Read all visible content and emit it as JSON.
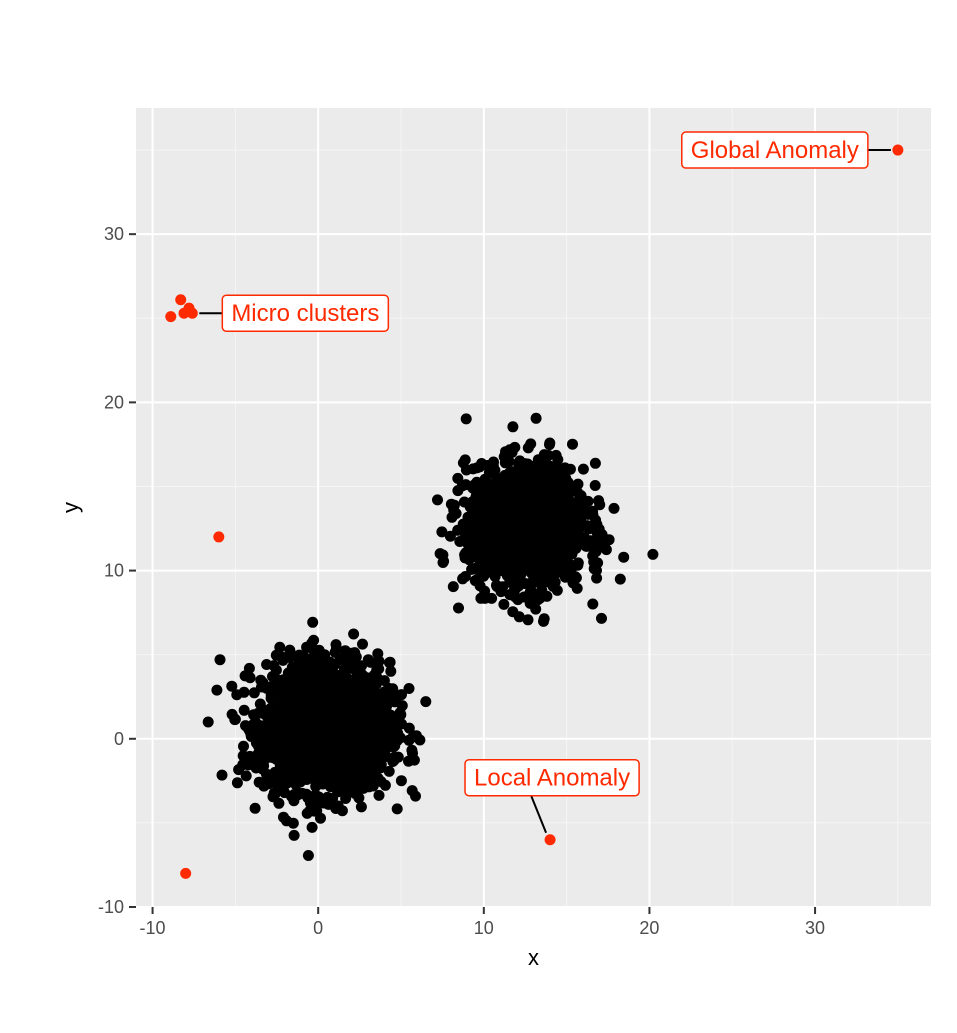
{
  "chart_data": {
    "type": "scatter",
    "title": "",
    "xlabel": "x",
    "ylabel": "y",
    "xlim": [
      -11,
      37
    ],
    "ylim": [
      -10,
      37.5
    ],
    "x_ticks": [
      -10,
      0,
      10,
      20,
      30
    ],
    "y_ticks": [
      -10,
      0,
      10,
      20,
      30
    ],
    "x_tick_labels": [
      "-10",
      "0",
      "10",
      "20",
      "30"
    ],
    "y_tick_labels": [
      "-10",
      "0",
      "10",
      "20",
      "30"
    ],
    "grid": true,
    "legend": "none",
    "colors": {
      "panel": "#ebebeb",
      "grid_major": "#ffffff",
      "grid_minor": "#f5f5f5",
      "normal_points": "#000000",
      "anomaly_points": "#ff2a00"
    },
    "clusters": [
      {
        "center": [
          0.5,
          0.7
        ],
        "sd": 1.9,
        "n": 2000
      },
      {
        "center": [
          12.5,
          12.6
        ],
        "sd": 1.8,
        "n": 1500
      }
    ],
    "anomalies": [
      {
        "x": 35,
        "y": 35,
        "kind": "global"
      },
      {
        "x": 14,
        "y": -6,
        "kind": "local"
      },
      {
        "x": -6,
        "y": 12,
        "kind": "other"
      },
      {
        "x": -8,
        "y": -8,
        "kind": "other"
      },
      {
        "x": -8.3,
        "y": 26.1,
        "kind": "micro"
      },
      {
        "x": -7.8,
        "y": 25.6,
        "kind": "micro"
      },
      {
        "x": -8.1,
        "y": 25.3,
        "kind": "micro"
      },
      {
        "x": -7.6,
        "y": 25.3,
        "kind": "micro"
      },
      {
        "x": -8.9,
        "y": 25.1,
        "kind": "micro"
      }
    ],
    "annotations": [
      {
        "text": "Global Anomaly",
        "point": [
          35,
          35
        ],
        "anchor": "left"
      },
      {
        "text": "Micro clusters",
        "point": [
          -7.6,
          25.3
        ],
        "anchor": "right"
      },
      {
        "text": "Local Anomaly",
        "point": [
          14,
          -6
        ],
        "anchor": "above"
      }
    ]
  }
}
